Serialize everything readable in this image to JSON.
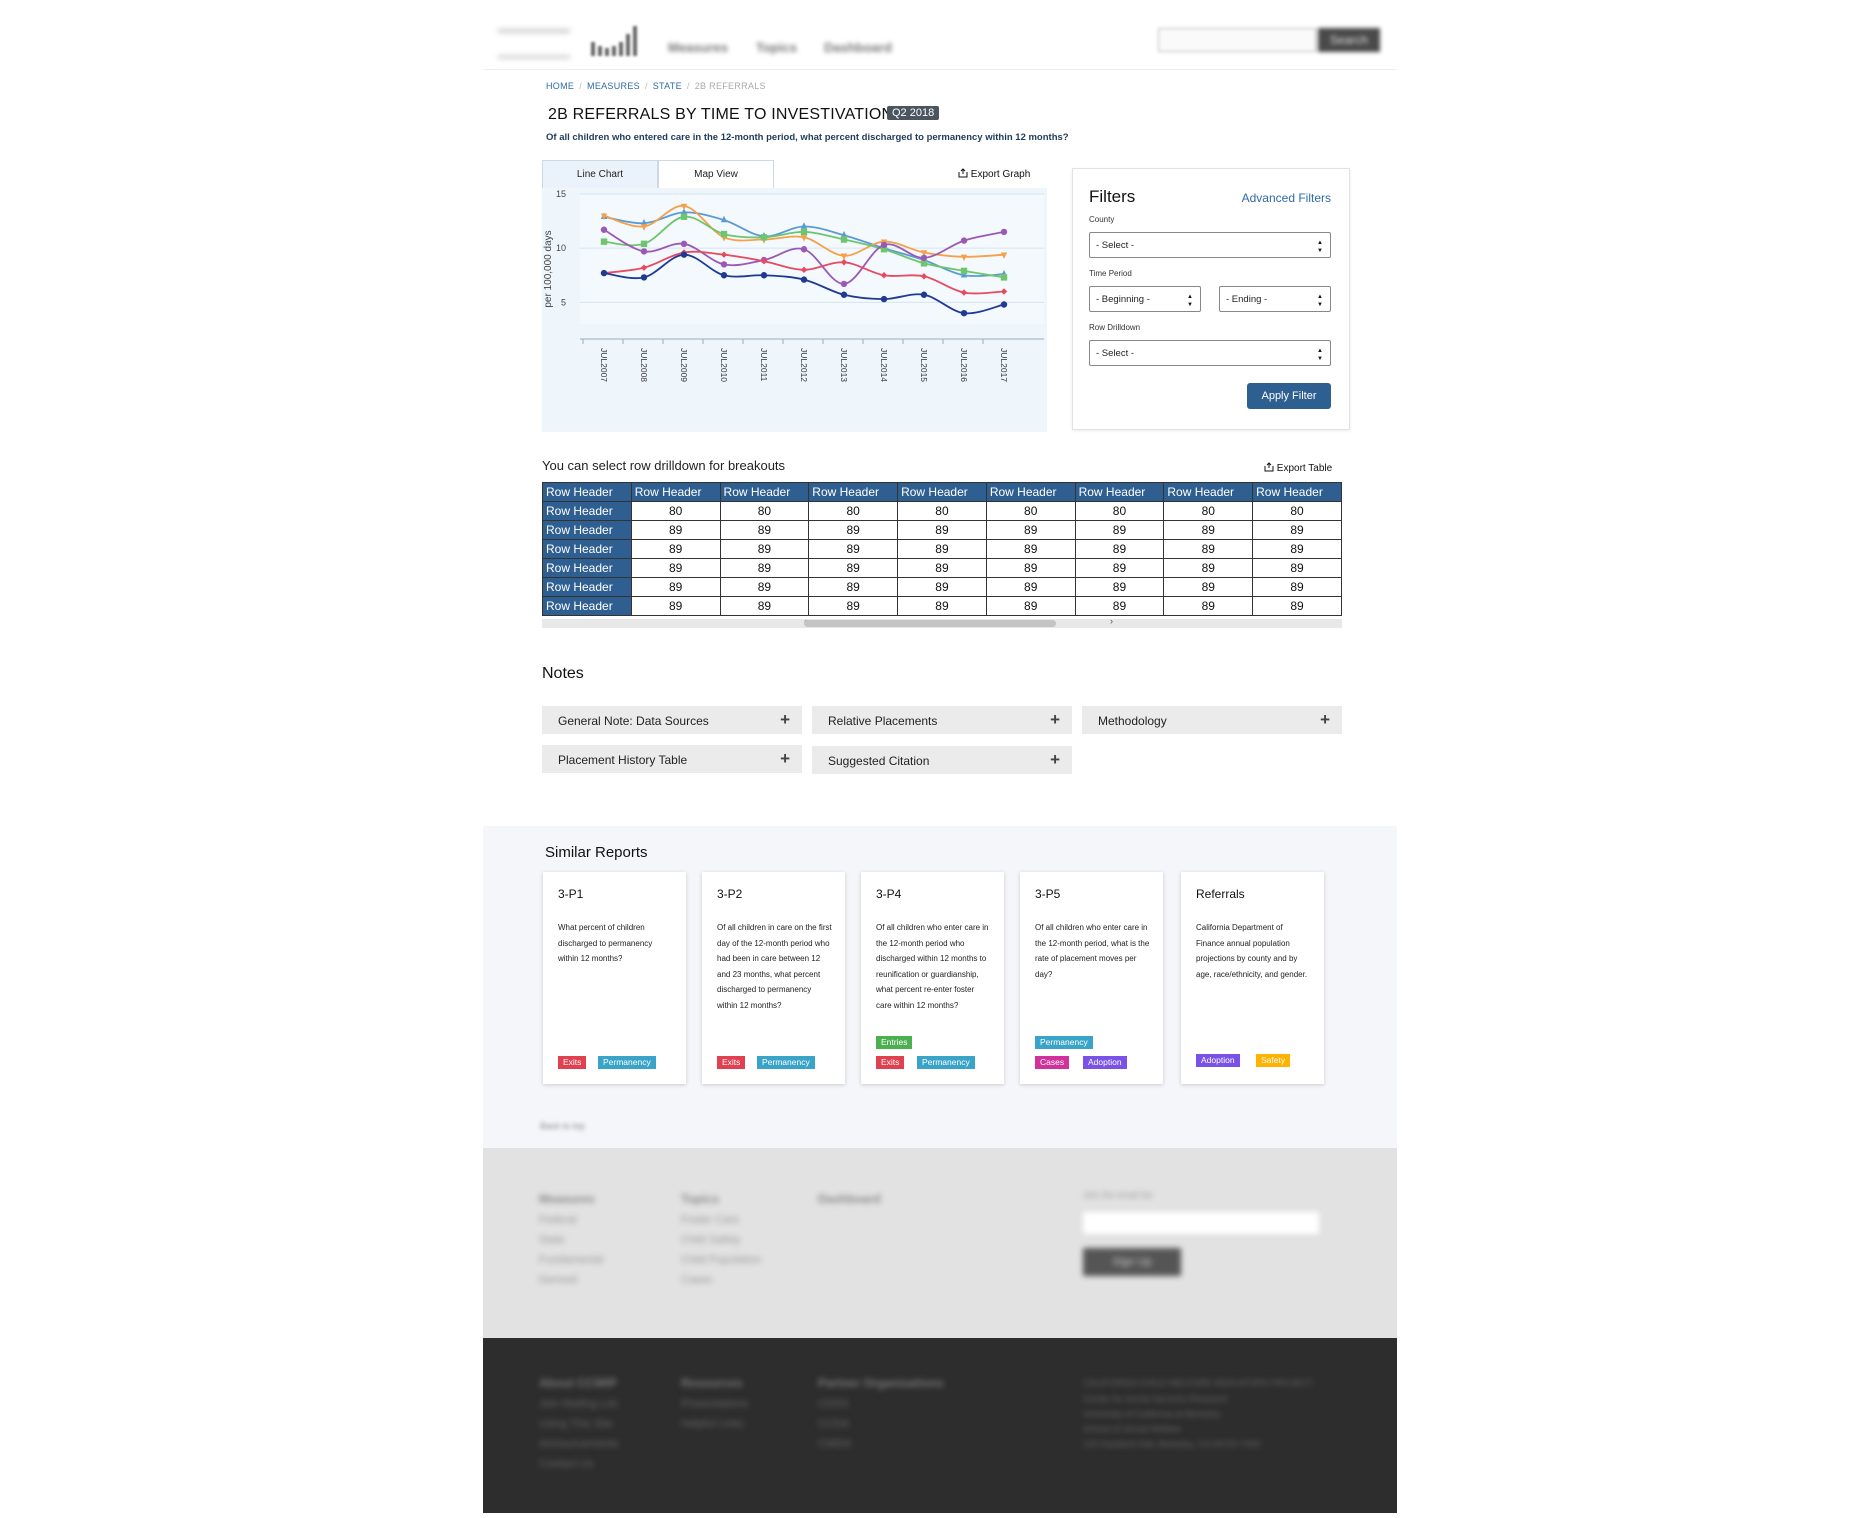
{
  "header": {
    "nav": [
      "Measures",
      "Topics",
      "Dashboard"
    ],
    "search_button": "Search"
  },
  "breadcrumb": [
    "HOME",
    "MEASURES",
    "STATE",
    "2B REFERRALS"
  ],
  "page": {
    "title": "2B REFERRALS BY TIME TO INVESTIVATION",
    "period_badge": "Q2 2018",
    "subtitle": "Of all children who entered care in the 12-month period, what percent discharged to permanency within 12 months?"
  },
  "chart_tabs": [
    "Line Chart",
    "Map View"
  ],
  "export_graph": "Export Graph",
  "chart_data": {
    "type": "line",
    "ylabel": "per 100,000 days",
    "xlabel": "",
    "ylim": [
      3,
      15
    ],
    "yticks": [
      5,
      10,
      15
    ],
    "grid": true,
    "categories": [
      "JUL2007",
      "JUL2008",
      "JUL2009",
      "JUL2010",
      "JUL2011",
      "JUL2012",
      "JUL2013",
      "JUL2014",
      "JUL2015",
      "JUL2016",
      "JUL2017"
    ],
    "series": [
      {
        "color": "#5b9bd5",
        "marker": "triangle",
        "values": [
          12.9,
          12.3,
          13.3,
          12.6,
          11.1,
          12.0,
          11.2,
          10.0,
          8.9,
          7.5,
          7.6
        ]
      },
      {
        "color": "#f5a04a",
        "marker": "triangle-down",
        "values": [
          13.0,
          12.0,
          13.9,
          11.0,
          10.8,
          11.0,
          9.3,
          10.6,
          9.6,
          9.2,
          9.4
        ]
      },
      {
        "color": "#6ec56e",
        "marker": "square",
        "values": [
          10.6,
          10.4,
          12.9,
          11.3,
          11.0,
          11.5,
          10.8,
          9.9,
          8.6,
          7.9,
          7.3
        ]
      },
      {
        "color": "#9b59b6",
        "marker": "circle",
        "values": [
          11.7,
          9.7,
          10.4,
          8.5,
          8.9,
          9.9,
          6.7,
          10.3,
          9.1,
          10.7,
          11.5
        ]
      },
      {
        "color": "#e84a5f",
        "marker": "diamond",
        "values": [
          7.7,
          8.2,
          9.6,
          9.4,
          8.8,
          8.0,
          8.7,
          7.5,
          7.4,
          5.9,
          6.0
        ]
      },
      {
        "color": "#1f3a93",
        "marker": "circle",
        "values": [
          7.7,
          7.3,
          9.4,
          7.5,
          7.5,
          7.1,
          5.7,
          5.3,
          5.7,
          4.0,
          4.8
        ]
      }
    ]
  },
  "filters": {
    "title": "Filters",
    "advanced": "Advanced Filters",
    "county_label": "County",
    "county_value": "- Select -",
    "time_label": "Time Period",
    "beginning_value": "- Beginning -",
    "ending_value": "- Ending -",
    "drill_label": "Row Drilldown",
    "drill_value": "- Select -",
    "apply": "Apply Filter"
  },
  "table": {
    "caption": "You can select row drilldown for breakouts",
    "export": "Export Table",
    "row_header": "Row Header",
    "header": [
      "Row Header",
      "Row Header",
      "Row Header",
      "Row Header",
      "Row Header",
      "Row Header",
      "Row Header",
      "Row Header",
      "Row Header"
    ],
    "rows": [
      [
        "Row Header",
        "80",
        "80",
        "80",
        "80",
        "80",
        "80",
        "80",
        "80"
      ],
      [
        "Row Header",
        "89",
        "89",
        "89",
        "89",
        "89",
        "89",
        "89",
        "89"
      ],
      [
        "Row Header",
        "89",
        "89",
        "89",
        "89",
        "89",
        "89",
        "89",
        "89"
      ],
      [
        "Row Header",
        "89",
        "89",
        "89",
        "89",
        "89",
        "89",
        "89",
        "89"
      ],
      [
        "Row Header",
        "89",
        "89",
        "89",
        "89",
        "89",
        "89",
        "89",
        "89"
      ],
      [
        "Row Header",
        "89",
        "89",
        "89",
        "89",
        "89",
        "89",
        "89",
        "89"
      ]
    ]
  },
  "notes": {
    "title": "Notes",
    "items": [
      "General Note: Data Sources",
      "Relative Placements",
      "Methodology",
      "Placement History Table",
      "Suggested Citation"
    ]
  },
  "similar": {
    "title": "Similar Reports",
    "cards": [
      {
        "id": "3-P1",
        "desc": "What percent of children discharged to permanency within 12 months?",
        "tags": [
          [
            "Exits",
            "Permanency"
          ]
        ]
      },
      {
        "id": "3-P2",
        "desc": "Of all children in care on the first day of the 12-month period who had been in care between 12 and 23 months, what percent discharged to permanency within 12 months?",
        "tags": [
          [
            "Exits",
            "Permanency"
          ]
        ]
      },
      {
        "id": "3-P4",
        "desc": "Of all children who enter care in the 12-month period who discharged within 12 months to reunification or guardianship, what percent re-enter foster care within 12 months?",
        "tags": [
          [
            "Entries"
          ],
          [
            "Exits",
            "Permanency"
          ]
        ]
      },
      {
        "id": "3-P5",
        "desc": "Of all children who enter care in the 12-month period, what is the rate of placement moves per day?",
        "tags": [
          [
            "Permanency"
          ],
          [
            "Cases",
            "Adoption"
          ]
        ]
      },
      {
        "id": "Referrals",
        "desc": "California Department of Finance annual population projections by county and by age, race/ethnicity, and gender.",
        "tags": [
          [
            "Adoption",
            "Safety"
          ]
        ]
      }
    ]
  },
  "back_to_top": "Back to top",
  "footer": {
    "col1": {
      "heading": "Measures",
      "items": [
        "Federal",
        "State",
        "Fundamental",
        "Derived"
      ]
    },
    "col2": {
      "heading": "Topics",
      "items": [
        "Foster Care",
        "Child Safety",
        "Child Population",
        "Cases"
      ]
    },
    "col3": {
      "heading": "Dashboard"
    },
    "signup_label": "Join the email list",
    "signup_button": "Sign Up"
  },
  "footer_dark": {
    "col1": {
      "heading": "About CCWIP",
      "items": [
        "Join Mailing List",
        "Using This Site",
        "Announcements",
        "Contact Us"
      ]
    },
    "col2": {
      "heading": "Resources",
      "items": [
        "Presentations",
        "Helpful Links"
      ]
    },
    "col3": {
      "heading": "Partner Organizations",
      "items": [
        "CDSS",
        "CCDA",
        "CWDA"
      ]
    },
    "address": [
      "CALIFORNIA CHILD WELFARE INDICATORS PROJECT",
      "Center for Social Services Research",
      "University of California at Berkeley",
      "School of Social Welfare",
      "120 Haviland Hall, Berkeley, CA 94720-7400"
    ]
  }
}
